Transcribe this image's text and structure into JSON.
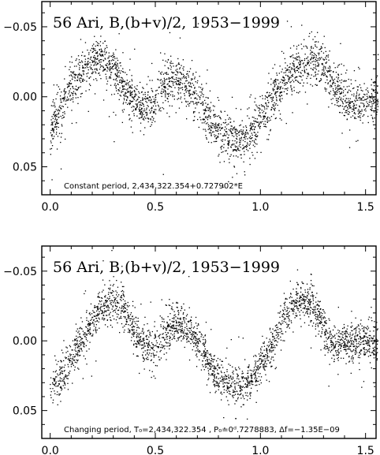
{
  "chart_data": [
    {
      "type": "scatter",
      "title": "56 Ari, B,(b+v)/2, 1953−1999",
      "annotation": "Constant period, 2,434,322.354+0.727902*E",
      "xlim": [
        -0.04,
        1.55
      ],
      "ylim": [
        -0.068,
        0.07
      ],
      "y_inverted": true,
      "xticks": [
        0.0,
        0.5,
        1.0,
        1.5
      ],
      "xtick_labels": [
        "0.0",
        "0.5",
        "1.0",
        "1.5"
      ],
      "yticks": [
        -0.05,
        0.0,
        0.05
      ],
      "ytick_labels": [
        "−0.05",
        "0.00",
        "0.05"
      ],
      "series": [
        {
          "x": [
            0.0,
            0.05,
            0.1,
            0.15,
            0.2,
            0.25,
            0.3,
            0.35,
            0.4,
            0.45,
            0.5,
            0.55,
            0.6,
            0.65,
            0.7,
            0.75,
            0.8,
            0.85,
            0.9,
            0.95,
            1.0,
            1.05,
            1.1,
            1.15,
            1.2,
            1.25,
            1.3,
            1.35,
            1.4,
            1.45,
            1.5,
            1.55
          ],
          "y": [
            0.02,
            0.01,
            -0.008,
            -0.018,
            -0.024,
            -0.027,
            -0.02,
            -0.008,
            0.003,
            0.006,
            0.004,
            -0.009,
            -0.012,
            -0.009,
            0.0,
            0.014,
            0.026,
            0.031,
            0.033,
            0.028,
            0.014,
            0.004,
            -0.008,
            -0.018,
            -0.024,
            -0.027,
            -0.02,
            -0.008,
            0.003,
            0.006,
            0.004,
            0.002
          ],
          "scatter_std": 0.008
        }
      ]
    },
    {
      "type": "scatter",
      "title": "56 Ari, B,(b+v)/2, 1953−1999",
      "annotation": "Changing period, T₀=2,434,322.354 , P₀=0ᵈ.7278883, Δf=−1.35E−09",
      "xlim": [
        -0.04,
        1.55
      ],
      "ylim": [
        -0.068,
        0.07
      ],
      "y_inverted": true,
      "xticks": [
        0.0,
        0.5,
        1.0,
        1.5
      ],
      "xtick_labels": [
        "0.0",
        "0.5",
        "1.0",
        "1.5"
      ],
      "yticks": [
        -0.05,
        0.0,
        0.05
      ],
      "ytick_labels": [
        "−0.05",
        "0.00",
        "0.05"
      ],
      "series": [
        {
          "x": [
            0.0,
            0.05,
            0.1,
            0.15,
            0.2,
            0.25,
            0.3,
            0.35,
            0.4,
            0.45,
            0.5,
            0.55,
            0.6,
            0.65,
            0.7,
            0.75,
            0.8,
            0.85,
            0.9,
            0.95,
            1.0,
            1.05,
            1.1,
            1.15,
            1.2,
            1.25,
            1.3,
            1.35,
            1.4,
            1.45,
            1.5,
            1.55
          ],
          "y": [
            0.032,
            0.026,
            0.014,
            0.0,
            -0.014,
            -0.024,
            -0.03,
            -0.025,
            -0.008,
            0.004,
            0.005,
            -0.005,
            -0.012,
            -0.01,
            0.0,
            0.014,
            0.026,
            0.03,
            0.032,
            0.03,
            0.018,
            0.004,
            -0.014,
            -0.024,
            -0.03,
            -0.025,
            -0.008,
            0.004,
            0.002,
            0.0,
            0.001,
            0.002
          ],
          "scatter_std": 0.007
        }
      ]
    }
  ]
}
